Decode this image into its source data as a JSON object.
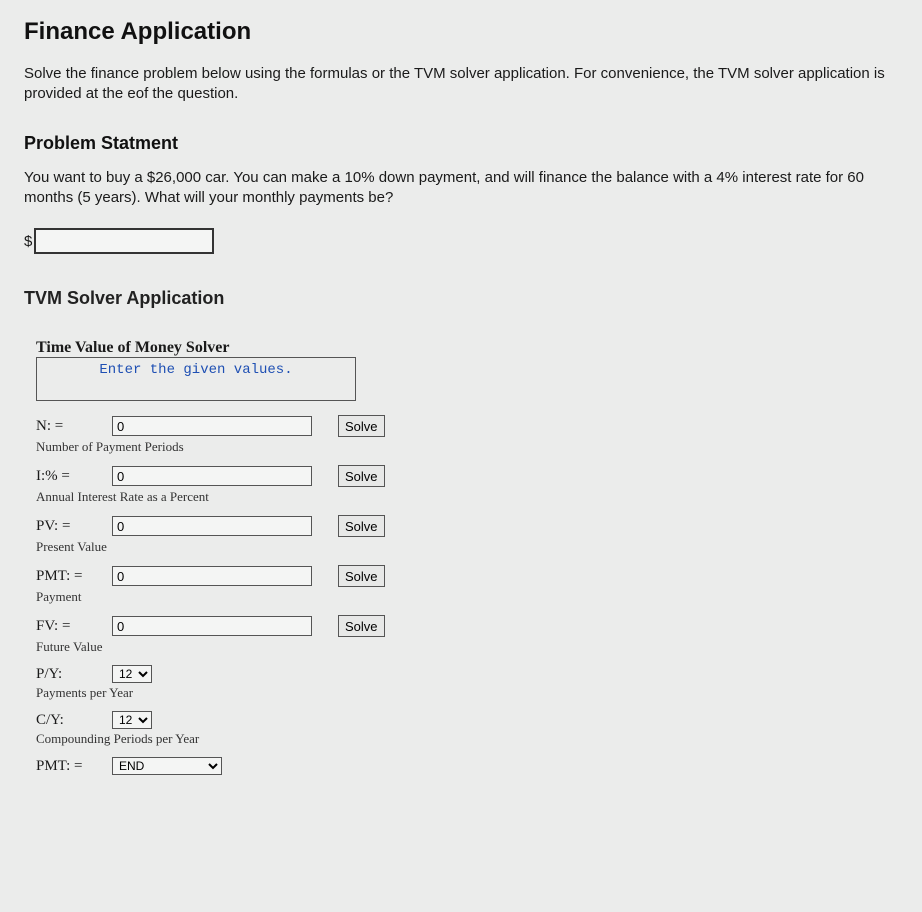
{
  "page": {
    "title": "Finance Application",
    "intro": "Solve the finance problem below using the formulas or the TVM solver application. For convenience, the TVM solver application is provided at the eof the question."
  },
  "problem": {
    "heading": "Problem Statment",
    "text": "You want to buy a $26,000 car. You can make a 10% down payment, and will finance the balance with a 4% interest rate for 60 months (5 years). What will your monthly payments be?",
    "currency_symbol": "$",
    "answer_value": ""
  },
  "tvm": {
    "heading": "TVM Solver Application",
    "solver_title": "Time Value of Money Solver",
    "message": "Enter the given values.",
    "solve_label": "Solve",
    "rows": {
      "n": {
        "label": "N: =",
        "value": "0",
        "desc": "Number of Payment Periods"
      },
      "i": {
        "label": "I:% =",
        "value": "0",
        "desc": "Annual Interest Rate as a Percent"
      },
      "pv": {
        "label": "PV: =",
        "value": "0",
        "desc": "Present Value"
      },
      "pmt": {
        "label": "PMT: =",
        "value": "0",
        "desc": "Payment"
      },
      "fv": {
        "label": "FV: =",
        "value": "0",
        "desc": "Future Value"
      }
    },
    "py": {
      "label": "P/Y:",
      "value": "12",
      "desc": "Payments per Year"
    },
    "cy": {
      "label": "C/Y:",
      "value": "12",
      "desc": "Compounding Periods per Year"
    },
    "pmtmode": {
      "label": "PMT: =",
      "value": "END"
    }
  },
  "colors": {
    "background": "#ebeceb",
    "text": "#1a1a1a",
    "message": "#1e4fb3",
    "border": "#555555"
  }
}
